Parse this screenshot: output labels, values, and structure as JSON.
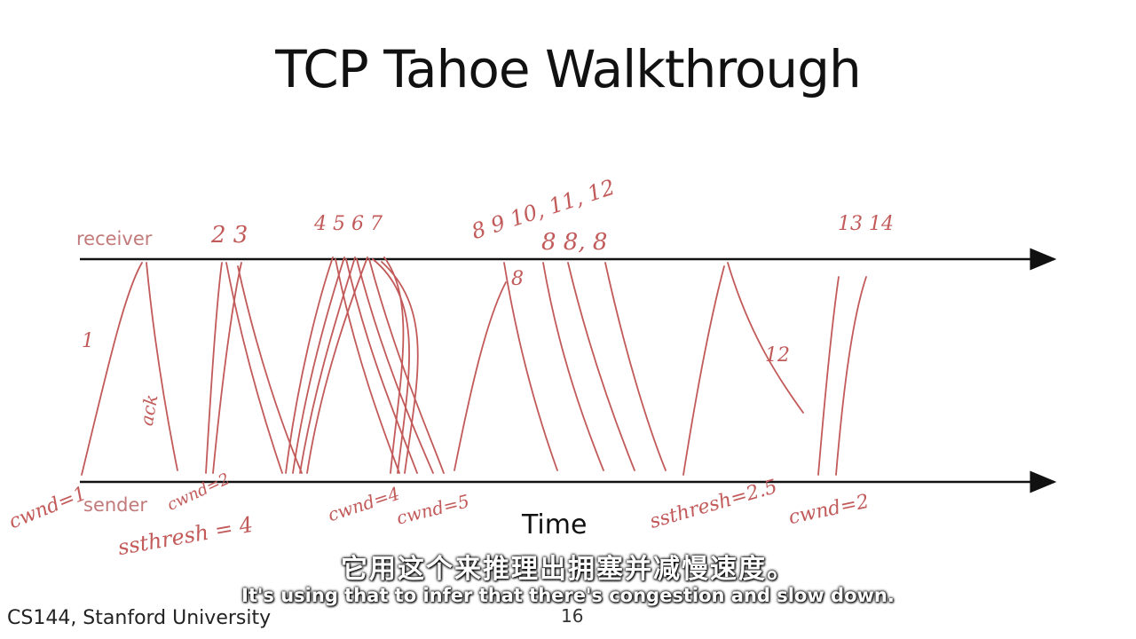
{
  "slide": {
    "title": "TCP Tahoe Walkthrough",
    "receiver_label": "receiver",
    "sender_label": "sender",
    "time_label": "Time",
    "footer": "CS144, Stanford University",
    "page_number": "16"
  },
  "annotations": {
    "seq_1": "1",
    "ack": "ack",
    "seq_2_3": "2 3",
    "seq_4_7": "4 5 6 7",
    "seq_8_12": "8 9 10, 11, 12",
    "ack_8": "8",
    "dup_8": "8 8, 8",
    "seq_13_14": "13 14",
    "seq_12": "12",
    "cwnd_1": "cwnd=1",
    "cwnd_2": "cwnd=2",
    "ssthresh_4": "ssthresh = 4",
    "cwnd_4": "cwnd=4",
    "cwnd_5": "cwnd=5",
    "ssthresh_2_5": "ssthresh=2.5",
    "cwnd_2_alt": "cwnd=2"
  },
  "subtitles": {
    "zh": "它用这个来推理出拥塞并减慢速度。",
    "en": "It's using that to infer that there's congestion and slow down."
  },
  "colors": {
    "axis": "#111111",
    "ink": "#c25a5a",
    "label": "#c27a7a"
  }
}
